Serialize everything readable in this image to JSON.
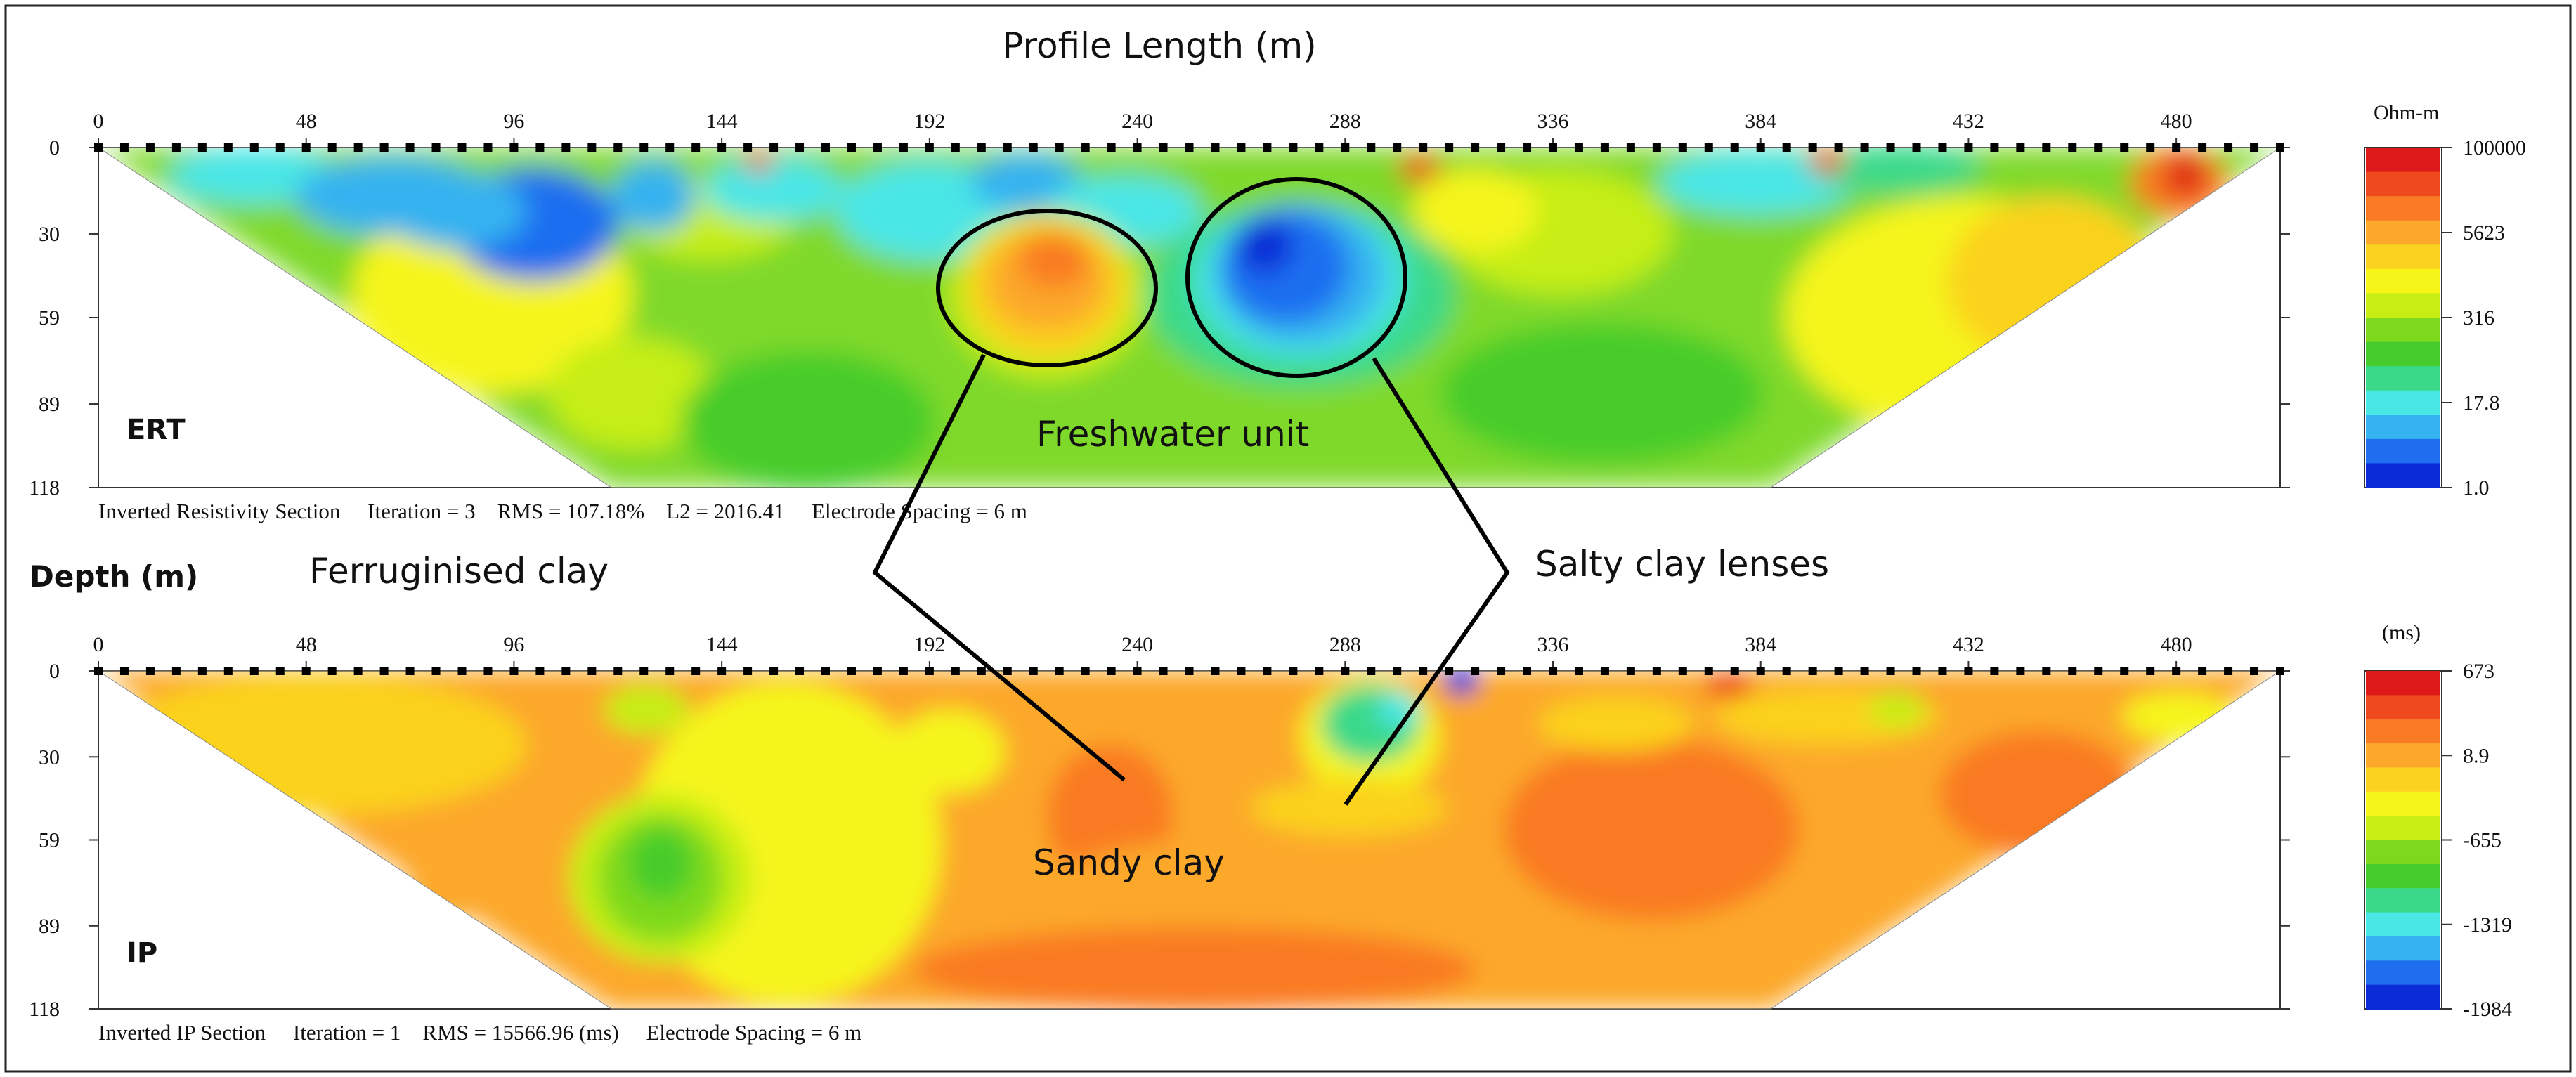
{
  "figure": {
    "profile_title": "Profile Length (m)",
    "depth_label": "Depth (m)",
    "annotations": {
      "ferruginised": "Ferruginised clay",
      "salty": "Salty clay lenses",
      "freshwater": "Freshwater unit",
      "sandy": "Sandy clay"
    }
  },
  "chart_data": [
    {
      "type": "heatmap",
      "panel_label": "ERT",
      "title": "Profile Length (m)",
      "xlabel": "Profile Length (m)",
      "ylabel": "Depth (m)",
      "x_ticks": [
        0,
        48,
        96,
        144,
        192,
        240,
        288,
        336,
        384,
        432,
        480
      ],
      "y_ticks": [
        0,
        30,
        59,
        89,
        118
      ],
      "xlim": [
        0,
        504
      ],
      "ylim": [
        118,
        0
      ],
      "colorbar_unit": "Ohm-m",
      "colorbar_ticks": [
        "100000",
        "5623",
        "316",
        "17.8",
        "1.0"
      ],
      "footer": "Inverted Resistivity Section     Iteration = 3    RMS = 107.18%    L2 = 2016.41     Electrode Spacing = 6 m",
      "iteration": 3,
      "rms": "107.18%",
      "l2": 2016.41,
      "electrode_spacing_m": 6,
      "features": [
        {
          "name": "Ferruginised clay",
          "x_center": 218,
          "depth_center": 40,
          "x_radius": 25,
          "depth_radius": 23
        },
        {
          "name": "Salty clay lenses",
          "x_center": 276,
          "depth_center": 38,
          "x_radius": 26,
          "depth_radius": 30
        }
      ]
    },
    {
      "type": "heatmap",
      "panel_label": "IP",
      "xlabel": "Profile Length (m)",
      "ylabel": "Depth (m)",
      "x_ticks": [
        0,
        48,
        96,
        144,
        192,
        240,
        288,
        336,
        384,
        432,
        480
      ],
      "y_ticks": [
        0,
        30,
        59,
        89,
        118
      ],
      "xlim": [
        0,
        504
      ],
      "ylim": [
        118,
        0
      ],
      "colorbar_unit": "(ms)",
      "colorbar_ticks": [
        "673",
        "8.9",
        "-655",
        "-1319",
        "-1984"
      ],
      "footer": "Inverted IP Section     Iteration = 1    RMS = 15566.96 (ms)     Electrode Spacing = 6 m",
      "iteration": 1,
      "rms": "15566.96 (ms)",
      "electrode_spacing_m": 6
    }
  ],
  "colors": {
    "scale": [
      "#0b2bd6",
      "#1f6ef0",
      "#35b2f0",
      "#49e6e6",
      "#3ad98a",
      "#46cc2c",
      "#7ed91e",
      "#c6ee14",
      "#f5f51a",
      "#fbd21f",
      "#fca82a",
      "#f97a24",
      "#ee4a1e",
      "#dd1a19"
    ]
  }
}
